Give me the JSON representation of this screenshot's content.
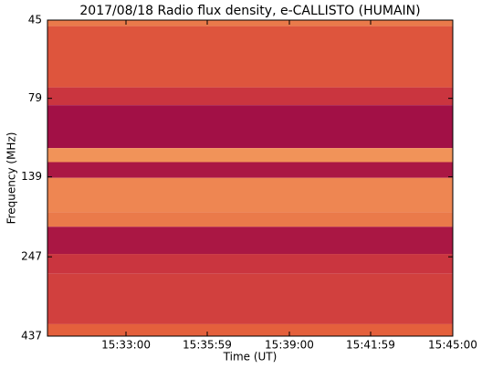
{
  "chart_data": {
    "type": "heatmap",
    "title": "2017/08/18  Radio flux density, e-CALLISTO (HUMAIN)",
    "x_label": "Time (UT)",
    "y_label": "Frequency (MHz)",
    "xlim": [
      55807,
      56700
    ],
    "xticks": [
      {
        "value": 55980,
        "label": "15:33:00"
      },
      {
        "value": 56159,
        "label": "15:35:59"
      },
      {
        "value": 56340,
        "label": "15:39:00"
      },
      {
        "value": 56519,
        "label": "15:41:59"
      },
      {
        "value": 56700,
        "label": "15:45:00"
      }
    ],
    "ylim": [
      45,
      437
    ],
    "yticks": [
      45,
      79,
      139,
      247,
      437
    ],
    "y_log": true,
    "y_inverted": true,
    "y_bins": [
      45,
      47,
      73,
      83,
      113,
      125,
      140,
      179,
      199,
      242,
      279,
      401,
      437
    ],
    "values": [
      0.6,
      0.45,
      0.3,
      0.05,
      0.7,
      0.1,
      0.65,
      0.6,
      0.1,
      0.3,
      0.35,
      0.5
    ],
    "colormap": [
      "#990a47",
      "#c42a40",
      "#e4603c",
      "#f4a060",
      "#f8d8a0"
    ]
  }
}
